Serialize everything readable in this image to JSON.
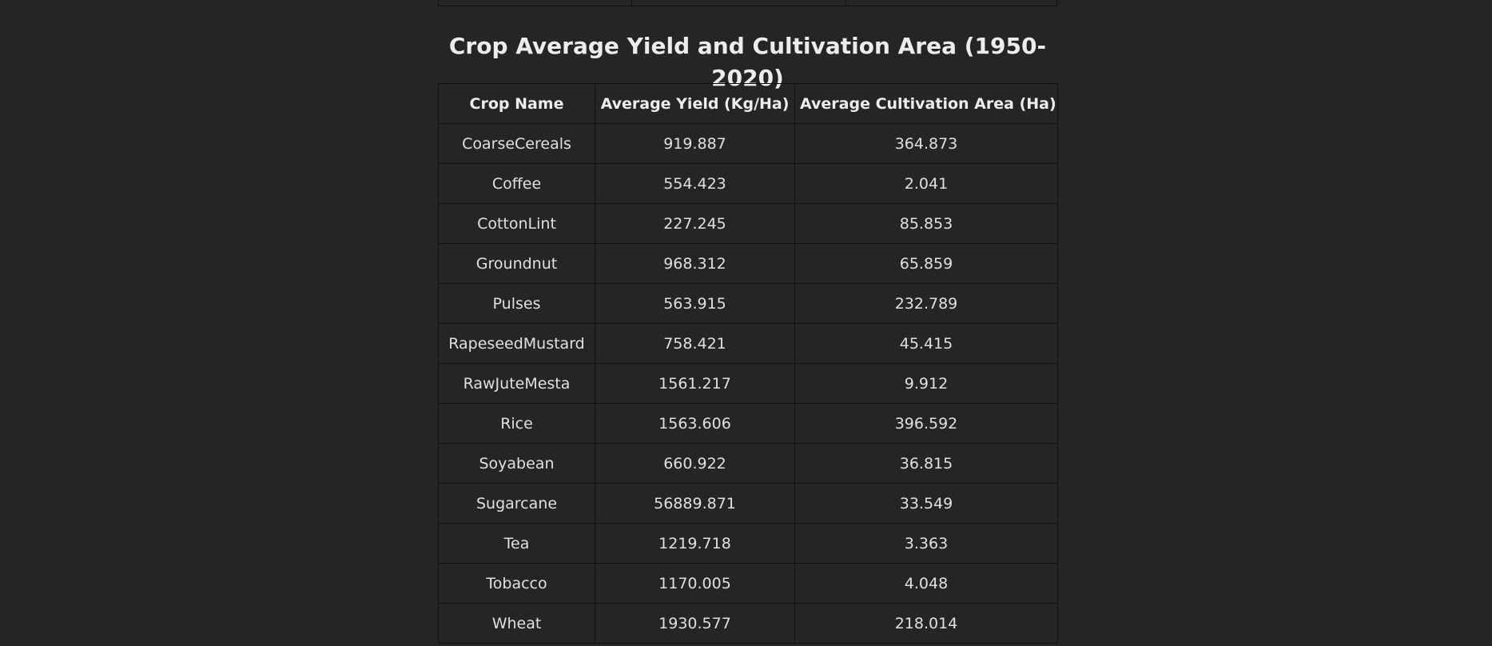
{
  "title": "Crop Average Yield and Cultivation Area (1950-2020)",
  "table": {
    "headers": [
      "Crop Name",
      "Average Yield (Kg/Ha)",
      "Average Cultivation Area (Ha)"
    ],
    "rows": [
      [
        "CoarseCereals",
        "919.887",
        "364.873"
      ],
      [
        "Coffee",
        "554.423",
        "2.041"
      ],
      [
        "CottonLint",
        "227.245",
        "85.853"
      ],
      [
        "Groundnut",
        "968.312",
        "65.859"
      ],
      [
        "Pulses",
        "563.915",
        "232.789"
      ],
      [
        "RapeseedMustard",
        "758.421",
        "45.415"
      ],
      [
        "RawJuteMesta",
        "1561.217",
        "9.912"
      ],
      [
        "Rice",
        "1563.606",
        "396.592"
      ],
      [
        "Soyabean",
        "660.922",
        "36.815"
      ],
      [
        "Sugarcane",
        "56889.871",
        "33.549"
      ],
      [
        "Tea",
        "1219.718",
        "3.363"
      ],
      [
        "Tobacco",
        "1170.005",
        "4.048"
      ],
      [
        "Wheat",
        "1930.577",
        "218.014"
      ]
    ]
  },
  "colors": {
    "background": "#252525",
    "border": "#111111",
    "text": "#e6e6e6"
  }
}
